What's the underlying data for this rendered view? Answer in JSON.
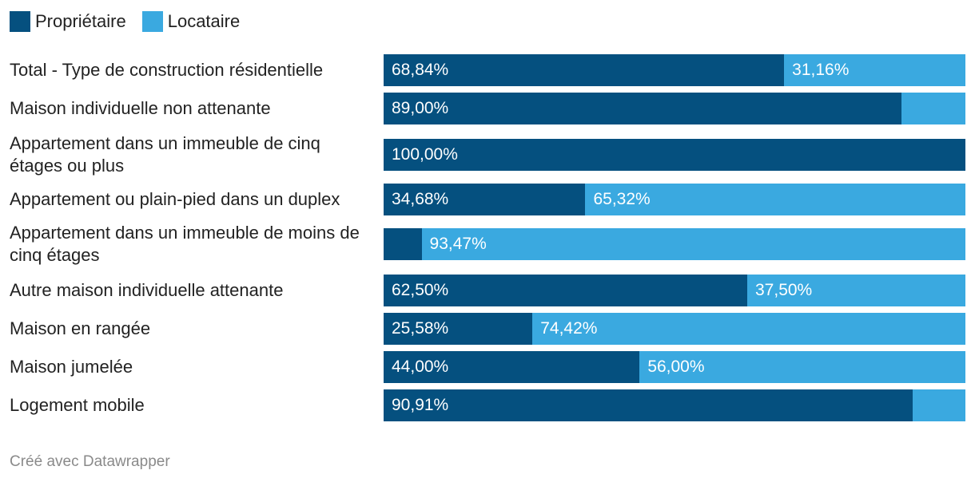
{
  "colors": {
    "proprietaire": "#05507f",
    "locataire": "#3aa9e0"
  },
  "chart_data": {
    "type": "bar",
    "orientation": "horizontal",
    "stacked": true,
    "legend_position": "top-left",
    "xlim": [
      0,
      100
    ],
    "series": [
      {
        "name": "Propriétaire",
        "values": [
          68.84,
          89.0,
          100.0,
          34.68,
          6.53,
          62.5,
          25.58,
          44.0,
          90.91
        ]
      },
      {
        "name": "Locataire",
        "values": [
          31.16,
          11.0,
          0.0,
          65.32,
          93.47,
          37.5,
          74.42,
          56.0,
          9.09
        ]
      }
    ],
    "categories": [
      "Total - Type de construction résidentielle",
      "Maison individuelle non attenante",
      "Appartement dans un immeuble de cinq étages ou plus",
      "Appartement ou plain-pied dans un duplex",
      "Appartement dans un immeuble de moins de cinq étages",
      "Autre maison individuelle attenante",
      "Maison en rangée",
      "Maison jumelée",
      "Logement mobile"
    ],
    "data_labels": [
      [
        "68,84%",
        "31,16%"
      ],
      [
        "89,00%",
        ""
      ],
      [
        "100,00%",
        ""
      ],
      [
        "34,68%",
        "65,32%"
      ],
      [
        "",
        "93,47%"
      ],
      [
        "62,50%",
        "37,50%"
      ],
      [
        "25,58%",
        "74,42%"
      ],
      [
        "44,00%",
        "56,00%"
      ],
      [
        "90,91%",
        ""
      ]
    ]
  },
  "footer": "Créé avec Datawrapper"
}
